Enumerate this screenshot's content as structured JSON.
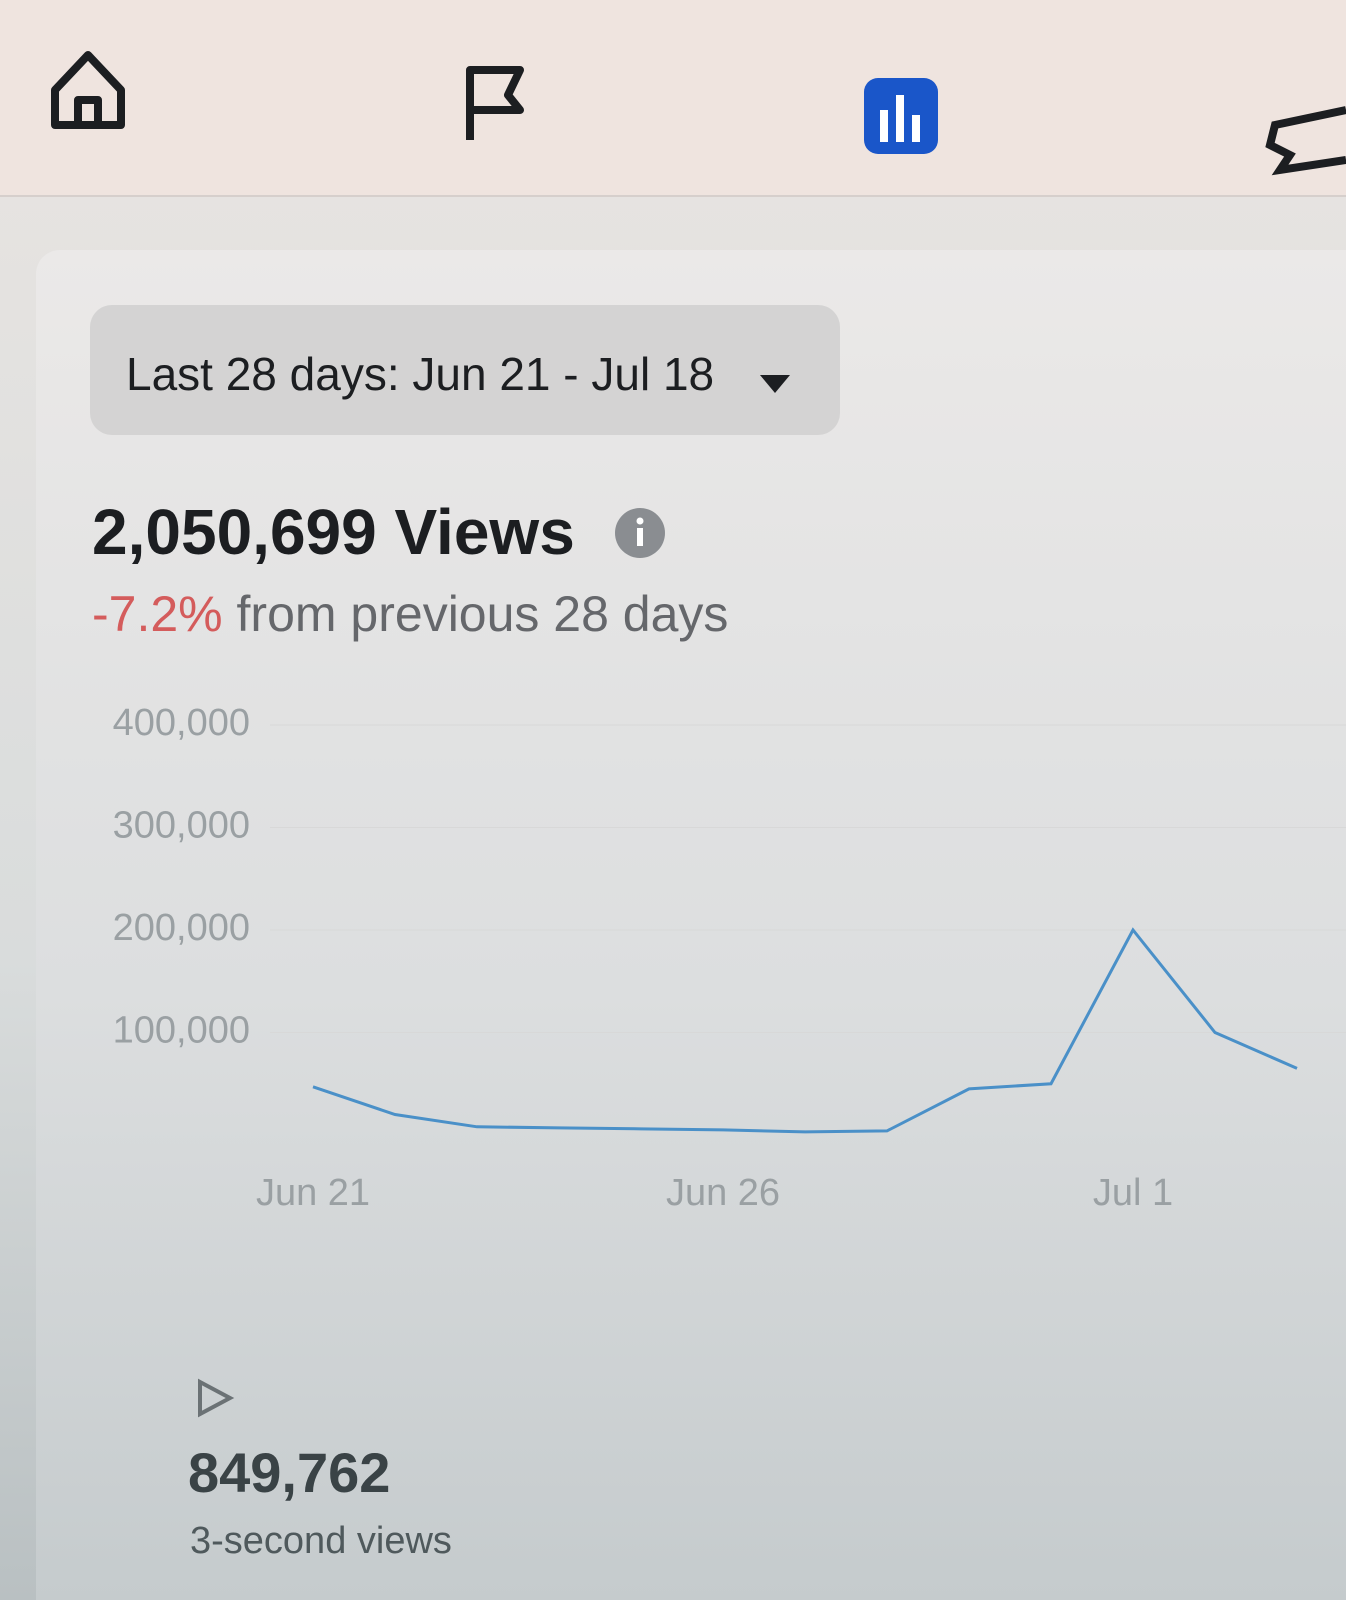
{
  "date_selector": {
    "label": "Last 28 days: Jun 21 - Jul 18"
  },
  "summary": {
    "views": "2,050,699 Views",
    "change": "-7.2%",
    "change_text": "from previous 28 days"
  },
  "chart_data": {
    "type": "line",
    "categories": [
      "Jun 21",
      null,
      null,
      null,
      null,
      "Jun 26",
      null,
      null,
      null,
      null,
      "Jul 1",
      null,
      null
    ],
    "values": [
      47000,
      20000,
      8000,
      7000,
      6000,
      5000,
      3000,
      4000,
      45000,
      50000,
      200000,
      100000,
      65000
    ],
    "color": "#4a90c8",
    "ylim": [
      0,
      400000
    ],
    "yticks": [
      {
        "value": 100000,
        "label": "100,000"
      },
      {
        "value": 200000,
        "label": "200,000"
      },
      {
        "value": 300000,
        "label": "300,000"
      },
      {
        "value": 400000,
        "label": "400,000"
      }
    ],
    "grid": true
  },
  "metric": {
    "value": "849,762",
    "label": "3-second views"
  }
}
